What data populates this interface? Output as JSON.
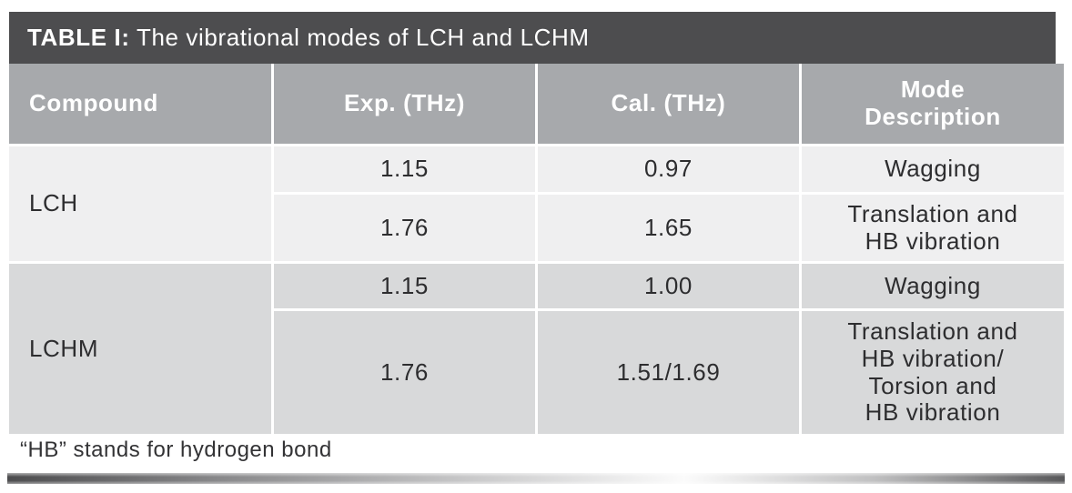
{
  "table": {
    "title_prefix": "TABLE I:",
    "title_rest": " The vibrational modes of LCH and LCHM",
    "columns": {
      "compound": "Compound",
      "exp": "Exp. (THz)",
      "cal": "Cal. (THz)",
      "mode": "Mode\nDescription"
    },
    "groups": [
      {
        "compound": "LCH",
        "rows": [
          {
            "exp": "1.15",
            "cal": "0.97",
            "mode": "Wagging"
          },
          {
            "exp": "1.76",
            "cal": "1.65",
            "mode": "Translation and\nHB vibration"
          }
        ]
      },
      {
        "compound": "LCHM",
        "rows": [
          {
            "exp": "1.15",
            "cal": "1.00",
            "mode": "Wagging"
          },
          {
            "exp": "1.76",
            "cal": "1.51/1.69",
            "mode": "Translation and\nHB vibration/\nTorsion and\nHB vibration"
          }
        ]
      }
    ],
    "footnote": "“HB” stands for hydrogen bond"
  },
  "colors": {
    "titlebar_bg": "#4d4d4f",
    "header_bg": "#a7a9ac",
    "group_light_bg": "#efeff0",
    "group_dark_bg": "#d8d9da",
    "text": "#2d2d2f",
    "header_text": "#ffffff"
  }
}
